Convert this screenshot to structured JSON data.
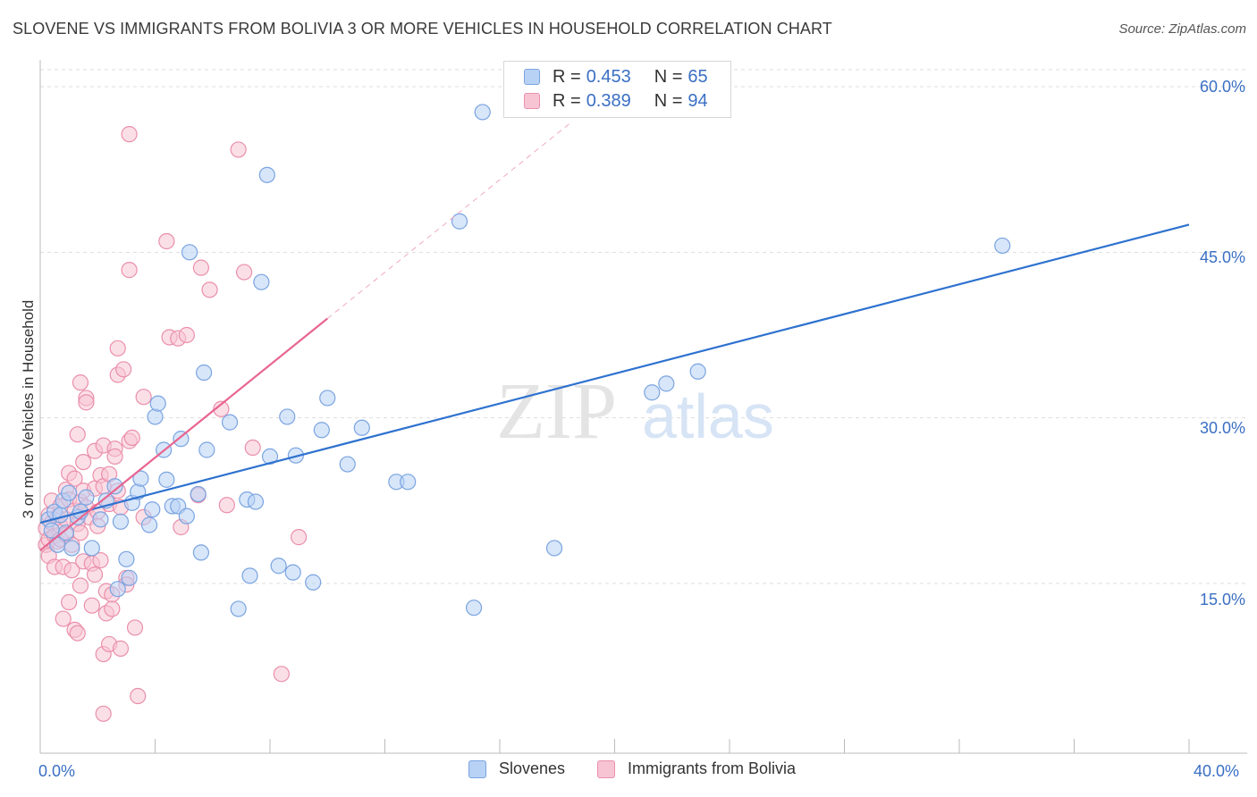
{
  "title": "SLOVENE VS IMMIGRANTS FROM BOLIVIA 3 OR MORE VEHICLES IN HOUSEHOLD CORRELATION CHART",
  "source": "Source: ZipAtlas.com",
  "watermark": {
    "zip": "ZIP",
    "atlas": "atlas"
  },
  "legend_stats": [
    {
      "r_label": "R = ",
      "r_value": "0.453",
      "n_label": "N = ",
      "n_value": "65"
    },
    {
      "r_label": "R = ",
      "r_value": "0.389",
      "n_label": "N = ",
      "n_value": "94"
    }
  ],
  "colors": {
    "blue_fill": "#b8d2f5",
    "blue_stroke": "#7aa4e0",
    "blue_line": "#2e72cf",
    "pink_fill": "#f7c4d4",
    "pink_stroke": "#ea8fab",
    "pink_line": "#e8648f",
    "grid": "#dddddd",
    "tick_text": "#3a6fc4"
  },
  "chart_data": {
    "type": "scatter",
    "title": "SLOVENE VS IMMIGRANTS FROM BOLIVIA 3 OR MORE VEHICLES IN HOUSEHOLD CORRELATION CHART",
    "xlabel": "",
    "ylabel": "3 or more Vehicles in Household",
    "xlim": [
      0,
      40
    ],
    "ylim": [
      0,
      60
    ],
    "x_tick_labels": [
      "0.0%",
      "40.0%"
    ],
    "y_ticks": [
      15,
      30,
      45,
      60
    ],
    "y_tick_labels": [
      "15.0%",
      "30.0%",
      "45.0%",
      "60.0%"
    ],
    "grid": true,
    "series": [
      {
        "name": "Slovenes",
        "color": "blue",
        "r": 0.453,
        "n": 65,
        "trendline": {
          "x": [
            0,
            40
          ],
          "y": [
            20.5,
            47.5
          ]
        },
        "points": [
          [
            0.3,
            20.8
          ],
          [
            0.4,
            19.8
          ],
          [
            0.5,
            21.5
          ],
          [
            0.6,
            18.5
          ],
          [
            0.7,
            21.2
          ],
          [
            0.8,
            22.5
          ],
          [
            0.9,
            19.6
          ],
          [
            1.0,
            23.2
          ],
          [
            1.1,
            18.2
          ],
          [
            1.3,
            21.0
          ],
          [
            1.4,
            21.5
          ],
          [
            1.6,
            22.8
          ],
          [
            1.8,
            18.2
          ],
          [
            2.1,
            20.8
          ],
          [
            2.3,
            22.5
          ],
          [
            2.6,
            23.8
          ],
          [
            2.7,
            14.5
          ],
          [
            2.8,
            20.6
          ],
          [
            3.0,
            17.2
          ],
          [
            3.1,
            15.5
          ],
          [
            3.2,
            22.3
          ],
          [
            3.4,
            23.3
          ],
          [
            3.5,
            24.5
          ],
          [
            3.8,
            20.3
          ],
          [
            3.9,
            21.7
          ],
          [
            4.0,
            30.1
          ],
          [
            4.1,
            31.3
          ],
          [
            4.3,
            27.1
          ],
          [
            4.4,
            24.4
          ],
          [
            4.6,
            22.0
          ],
          [
            4.8,
            22.0
          ],
          [
            4.9,
            28.1
          ],
          [
            5.1,
            21.1
          ],
          [
            5.2,
            45.0
          ],
          [
            5.5,
            23.1
          ],
          [
            5.6,
            17.8
          ],
          [
            5.7,
            34.1
          ],
          [
            5.8,
            27.1
          ],
          [
            6.6,
            29.6
          ],
          [
            6.9,
            12.7
          ],
          [
            7.2,
            22.6
          ],
          [
            7.3,
            15.7
          ],
          [
            7.5,
            22.4
          ],
          [
            7.7,
            42.3
          ],
          [
            7.9,
            52.0
          ],
          [
            8.0,
            26.5
          ],
          [
            8.3,
            16.6
          ],
          [
            8.6,
            30.1
          ],
          [
            8.8,
            16.0
          ],
          [
            8.9,
            26.6
          ],
          [
            9.5,
            15.1
          ],
          [
            9.8,
            28.9
          ],
          [
            10.0,
            31.8
          ],
          [
            10.7,
            25.8
          ],
          [
            11.2,
            29.1
          ],
          [
            12.4,
            24.2
          ],
          [
            12.8,
            24.2
          ],
          [
            14.6,
            47.8
          ],
          [
            15.1,
            12.8
          ],
          [
            15.4,
            57.7
          ],
          [
            17.9,
            18.2
          ],
          [
            21.3,
            32.3
          ],
          [
            21.8,
            33.1
          ],
          [
            22.9,
            34.2
          ],
          [
            33.5,
            45.6
          ]
        ]
      },
      {
        "name": "Immigrants from Bolivia",
        "color": "pink",
        "r": 0.389,
        "n": 94,
        "trendline": {
          "x": [
            0,
            10
          ],
          "y": [
            18.0,
            39.0
          ]
        },
        "trendline_dashed": {
          "x": [
            10,
            18.5
          ],
          "y": [
            39.0,
            56.8
          ]
        },
        "points": [
          [
            0.2,
            18.5
          ],
          [
            0.2,
            20.0
          ],
          [
            0.3,
            19.0
          ],
          [
            0.3,
            21.2
          ],
          [
            0.3,
            17.5
          ],
          [
            0.4,
            22.5
          ],
          [
            0.4,
            20.5
          ],
          [
            0.5,
            19.3
          ],
          [
            0.5,
            16.5
          ],
          [
            0.6,
            21.0
          ],
          [
            0.6,
            18.8
          ],
          [
            0.7,
            22.0
          ],
          [
            0.7,
            20.2
          ],
          [
            0.7,
            19.0
          ],
          [
            0.8,
            16.5
          ],
          [
            0.8,
            11.8
          ],
          [
            0.9,
            23.5
          ],
          [
            0.9,
            20.8
          ],
          [
            0.9,
            19.4
          ],
          [
            1.0,
            25.0
          ],
          [
            1.0,
            22.6
          ],
          [
            1.0,
            13.3
          ],
          [
            1.1,
            18.5
          ],
          [
            1.1,
            16.2
          ],
          [
            1.2,
            24.5
          ],
          [
            1.2,
            21.6
          ],
          [
            1.2,
            10.8
          ],
          [
            1.3,
            28.5
          ],
          [
            1.3,
            20.4
          ],
          [
            1.3,
            10.5
          ],
          [
            1.4,
            33.2
          ],
          [
            1.4,
            22.4
          ],
          [
            1.4,
            19.6
          ],
          [
            1.4,
            14.8
          ],
          [
            1.5,
            26.0
          ],
          [
            1.5,
            23.4
          ],
          [
            1.5,
            17.0
          ],
          [
            1.6,
            31.8
          ],
          [
            1.6,
            31.4
          ],
          [
            1.6,
            21.9
          ],
          [
            1.7,
            21.0
          ],
          [
            1.8,
            16.8
          ],
          [
            1.8,
            13.0
          ],
          [
            1.9,
            27.0
          ],
          [
            1.9,
            23.6
          ],
          [
            1.9,
            15.8
          ],
          [
            2.0,
            21.5
          ],
          [
            2.0,
            20.2
          ],
          [
            2.1,
            24.8
          ],
          [
            2.1,
            17.1
          ],
          [
            2.2,
            27.5
          ],
          [
            2.2,
            23.8
          ],
          [
            2.2,
            8.6
          ],
          [
            2.2,
            3.2
          ],
          [
            2.3,
            14.3
          ],
          [
            2.3,
            12.3
          ],
          [
            2.4,
            24.9
          ],
          [
            2.4,
            22.2
          ],
          [
            2.4,
            9.5
          ],
          [
            2.5,
            14.0
          ],
          [
            2.5,
            12.7
          ],
          [
            2.6,
            27.2
          ],
          [
            2.6,
            26.5
          ],
          [
            2.7,
            36.3
          ],
          [
            2.7,
            33.9
          ],
          [
            2.7,
            23.4
          ],
          [
            2.8,
            21.9
          ],
          [
            2.8,
            9.1
          ],
          [
            2.9,
            34.4
          ],
          [
            3.0,
            15.5
          ],
          [
            3.0,
            14.9
          ],
          [
            3.1,
            27.9
          ],
          [
            3.1,
            43.4
          ],
          [
            3.1,
            55.7
          ],
          [
            3.2,
            28.2
          ],
          [
            3.3,
            11.0
          ],
          [
            3.4,
            4.8
          ],
          [
            3.6,
            31.9
          ],
          [
            3.6,
            21.0
          ],
          [
            4.4,
            46.0
          ],
          [
            4.5,
            37.3
          ],
          [
            4.8,
            37.2
          ],
          [
            4.9,
            20.1
          ],
          [
            5.1,
            37.5
          ],
          [
            5.5,
            23.0
          ],
          [
            5.6,
            43.6
          ],
          [
            5.9,
            41.6
          ],
          [
            6.3,
            30.8
          ],
          [
            6.5,
            22.1
          ],
          [
            6.9,
            54.3
          ],
          [
            7.1,
            43.2
          ],
          [
            7.4,
            27.3
          ],
          [
            8.4,
            6.8
          ],
          [
            9.0,
            19.2
          ]
        ]
      }
    ],
    "legend_position": "bottom"
  }
}
